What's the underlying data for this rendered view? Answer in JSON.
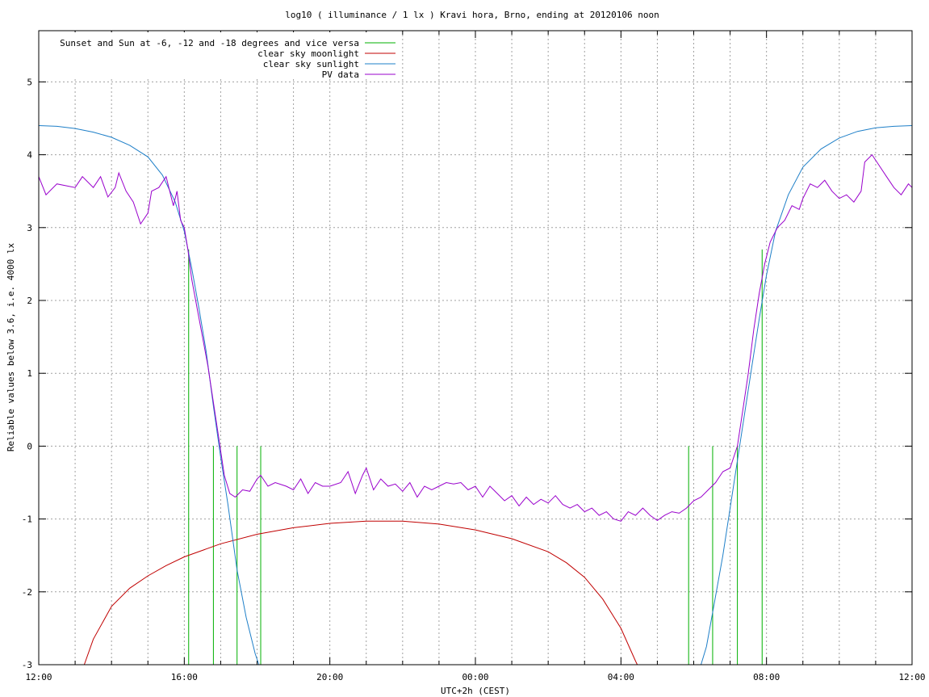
{
  "chart_data": {
    "type": "line",
    "title": "log10 ( illuminance / 1 lx ) Kravi hora, Brno, ending at 20120106 noon",
    "xlabel": "UTC+2h (CEST)",
    "ylabel": "Reliable values below 3.6, i.e. 4000 lx",
    "x_unit": "hours since 12:00",
    "xlim": [
      0,
      24
    ],
    "ylim": [
      -3,
      5.8
    ],
    "x_tick_labels": [
      {
        "x": 0,
        "label": "12:00"
      },
      {
        "x": 4,
        "label": "16:00"
      },
      {
        "x": 8,
        "label": "20:00"
      },
      {
        "x": 12,
        "label": "00:00"
      },
      {
        "x": 16,
        "label": "04:00"
      },
      {
        "x": 20,
        "label": "08:00"
      },
      {
        "x": 24,
        "label": "12:00"
      }
    ],
    "y_ticks": [
      -3,
      -2,
      -1,
      0,
      1,
      2,
      3,
      4,
      5
    ],
    "grid": true,
    "legend_position": "top-left",
    "series": [
      {
        "name": "Sunset and Sun at -6, -12 and -18 degrees and vice versa",
        "kind": "vertical-markers",
        "color": "#00b000",
        "markers": [
          {
            "x": 4.12,
            "y_top": 2.7
          },
          {
            "x": 4.8,
            "y_top": 0.0
          },
          {
            "x": 5.45,
            "y_top": 0.0
          },
          {
            "x": 6.1,
            "y_top": 0.0
          },
          {
            "x": 17.86,
            "y_top": 0.0
          },
          {
            "x": 18.52,
            "y_top": 0.0
          },
          {
            "x": 19.2,
            "y_top": 0.0
          },
          {
            "x": 19.88,
            "y_top": 2.7
          }
        ]
      },
      {
        "name": "clear sky moonlight",
        "color": "#c00000",
        "points": [
          [
            1.25,
            -3
          ],
          [
            1.5,
            -2.65
          ],
          [
            2,
            -2.2
          ],
          [
            2.5,
            -1.95
          ],
          [
            3,
            -1.78
          ],
          [
            3.5,
            -1.64
          ],
          [
            4,
            -1.52
          ],
          [
            5,
            -1.34
          ],
          [
            6,
            -1.21
          ],
          [
            7,
            -1.12
          ],
          [
            8,
            -1.06
          ],
          [
            9,
            -1.03
          ],
          [
            10,
            -1.03
          ],
          [
            11,
            -1.07
          ],
          [
            12,
            -1.15
          ],
          [
            13,
            -1.27
          ],
          [
            14,
            -1.45
          ],
          [
            14.5,
            -1.6
          ],
          [
            15,
            -1.8
          ],
          [
            15.5,
            -2.1
          ],
          [
            16,
            -2.5
          ],
          [
            16.4,
            -2.95
          ],
          [
            16.45,
            -3
          ]
        ]
      },
      {
        "name": "clear sky sunlight",
        "color": "#1e7fc8",
        "points": [
          [
            0,
            4.4
          ],
          [
            0.5,
            4.39
          ],
          [
            1,
            4.36
          ],
          [
            1.5,
            4.31
          ],
          [
            2,
            4.24
          ],
          [
            2.5,
            4.13
          ],
          [
            3,
            3.97
          ],
          [
            3.4,
            3.72
          ],
          [
            3.75,
            3.35
          ],
          [
            4,
            2.95
          ],
          [
            4.2,
            2.45
          ],
          [
            4.4,
            1.9
          ],
          [
            4.6,
            1.3
          ],
          [
            4.8,
            0.55
          ],
          [
            5,
            -0.15
          ],
          [
            5.2,
            -0.8
          ],
          [
            5.45,
            -1.7
          ],
          [
            5.7,
            -2.35
          ],
          [
            5.95,
            -2.85
          ],
          [
            6.05,
            -3
          ],
          [
            18.2,
            -3
          ],
          [
            18.35,
            -2.75
          ],
          [
            18.55,
            -2.2
          ],
          [
            18.8,
            -1.5
          ],
          [
            19,
            -0.85
          ],
          [
            19.2,
            -0.2
          ],
          [
            19.4,
            0.45
          ],
          [
            19.6,
            1.1
          ],
          [
            19.8,
            1.75
          ],
          [
            20,
            2.35
          ],
          [
            20.25,
            2.95
          ],
          [
            20.6,
            3.45
          ],
          [
            21,
            3.83
          ],
          [
            21.5,
            4.08
          ],
          [
            22,
            4.23
          ],
          [
            22.5,
            4.32
          ],
          [
            23,
            4.37
          ],
          [
            23.5,
            4.39
          ],
          [
            24,
            4.4
          ]
        ]
      },
      {
        "name": "PV data",
        "color": "#9900cc",
        "points": [
          [
            0,
            3.7
          ],
          [
            0.2,
            3.45
          ],
          [
            0.5,
            3.6
          ],
          [
            1,
            3.55
          ],
          [
            1.2,
            3.7
          ],
          [
            1.5,
            3.55
          ],
          [
            1.7,
            3.7
          ],
          [
            1.9,
            3.42
          ],
          [
            2.1,
            3.55
          ],
          [
            2.2,
            3.75
          ],
          [
            2.4,
            3.5
          ],
          [
            2.6,
            3.35
          ],
          [
            2.8,
            3.05
          ],
          [
            3,
            3.2
          ],
          [
            3.1,
            3.5
          ],
          [
            3.3,
            3.55
          ],
          [
            3.5,
            3.7
          ],
          [
            3.7,
            3.3
          ],
          [
            3.8,
            3.5
          ],
          [
            3.9,
            3.1
          ],
          [
            4,
            3.0
          ],
          [
            4.1,
            2.7
          ],
          [
            4.2,
            2.3
          ],
          [
            4.35,
            1.9
          ],
          [
            4.5,
            1.5
          ],
          [
            4.65,
            1.1
          ],
          [
            4.8,
            0.6
          ],
          [
            4.95,
            0.1
          ],
          [
            5.1,
            -0.4
          ],
          [
            5.25,
            -0.65
          ],
          [
            5.4,
            -0.7
          ],
          [
            5.6,
            -0.6
          ],
          [
            5.8,
            -0.62
          ],
          [
            6,
            -0.45
          ],
          [
            6.1,
            -0.4
          ],
          [
            6.3,
            -0.55
          ],
          [
            6.5,
            -0.5
          ],
          [
            6.8,
            -0.55
          ],
          [
            7,
            -0.6
          ],
          [
            7.2,
            -0.45
          ],
          [
            7.4,
            -0.65
          ],
          [
            7.6,
            -0.5
          ],
          [
            7.8,
            -0.55
          ],
          [
            8,
            -0.55
          ],
          [
            8.3,
            -0.5
          ],
          [
            8.5,
            -0.35
          ],
          [
            8.7,
            -0.65
          ],
          [
            8.9,
            -0.4
          ],
          [
            9,
            -0.3
          ],
          [
            9.2,
            -0.6
          ],
          [
            9.4,
            -0.45
          ],
          [
            9.6,
            -0.55
          ],
          [
            9.8,
            -0.52
          ],
          [
            10,
            -0.62
          ],
          [
            10.2,
            -0.5
          ],
          [
            10.4,
            -0.7
          ],
          [
            10.6,
            -0.55
          ],
          [
            10.8,
            -0.6
          ],
          [
            11,
            -0.55
          ],
          [
            11.2,
            -0.5
          ],
          [
            11.4,
            -0.52
          ],
          [
            11.6,
            -0.5
          ],
          [
            11.8,
            -0.6
          ],
          [
            12,
            -0.55
          ],
          [
            12.2,
            -0.7
          ],
          [
            12.4,
            -0.55
          ],
          [
            12.6,
            -0.65
          ],
          [
            12.8,
            -0.75
          ],
          [
            13,
            -0.68
          ],
          [
            13.2,
            -0.82
          ],
          [
            13.4,
            -0.7
          ],
          [
            13.6,
            -0.8
          ],
          [
            13.8,
            -0.73
          ],
          [
            14,
            -0.78
          ],
          [
            14.2,
            -0.68
          ],
          [
            14.4,
            -0.8
          ],
          [
            14.6,
            -0.85
          ],
          [
            14.8,
            -0.8
          ],
          [
            15,
            -0.9
          ],
          [
            15.2,
            -0.85
          ],
          [
            15.4,
            -0.95
          ],
          [
            15.6,
            -0.9
          ],
          [
            15.8,
            -1.0
          ],
          [
            16,
            -1.03
          ],
          [
            16.2,
            -0.9
          ],
          [
            16.4,
            -0.95
          ],
          [
            16.6,
            -0.85
          ],
          [
            16.8,
            -0.95
          ],
          [
            17,
            -1.02
          ],
          [
            17.2,
            -0.95
          ],
          [
            17.4,
            -0.9
          ],
          [
            17.6,
            -0.92
          ],
          [
            17.8,
            -0.85
          ],
          [
            18,
            -0.75
          ],
          [
            18.2,
            -0.7
          ],
          [
            18.4,
            -0.6
          ],
          [
            18.6,
            -0.5
          ],
          [
            18.8,
            -0.35
          ],
          [
            19,
            -0.3
          ],
          [
            19.2,
            0.0
          ],
          [
            19.35,
            0.5
          ],
          [
            19.5,
            1.0
          ],
          [
            19.65,
            1.6
          ],
          [
            19.8,
            2.1
          ],
          [
            19.95,
            2.5
          ],
          [
            20.1,
            2.8
          ],
          [
            20.3,
            3.0
          ],
          [
            20.5,
            3.1
          ],
          [
            20.7,
            3.3
          ],
          [
            20.9,
            3.25
          ],
          [
            21,
            3.4
          ],
          [
            21.2,
            3.6
          ],
          [
            21.4,
            3.55
          ],
          [
            21.6,
            3.65
          ],
          [
            21.8,
            3.5
          ],
          [
            22,
            3.4
          ],
          [
            22.2,
            3.45
          ],
          [
            22.4,
            3.35
          ],
          [
            22.6,
            3.5
          ],
          [
            22.7,
            3.9
          ],
          [
            22.9,
            4.0
          ],
          [
            23.1,
            3.85
          ],
          [
            23.3,
            3.7
          ],
          [
            23.5,
            3.55
          ],
          [
            23.7,
            3.45
          ],
          [
            23.9,
            3.6
          ],
          [
            24,
            3.55
          ]
        ]
      }
    ]
  }
}
